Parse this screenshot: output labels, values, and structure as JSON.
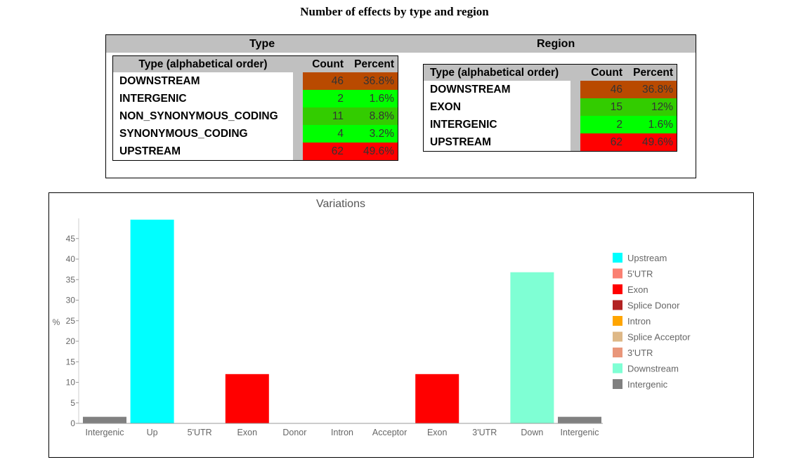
{
  "page": {
    "title": "Number of effects by type and region"
  },
  "type_panel": {
    "heading": "Type",
    "columns": [
      "Type (alphabetical order)",
      "Count",
      "Percent"
    ],
    "rows": [
      {
        "name": "DOWNSTREAM",
        "count": "46",
        "percent": "36.8%",
        "color": "#b94a00"
      },
      {
        "name": "INTERGENIC",
        "count": "2",
        "percent": "1.6%",
        "color": "#00ff00"
      },
      {
        "name": "NON_SYNONYMOUS_CODING",
        "count": "11",
        "percent": "8.8%",
        "color": "#33cc00"
      },
      {
        "name": "SYNONYMOUS_CODING",
        "count": "4",
        "percent": "3.2%",
        "color": "#00ff00"
      },
      {
        "name": "UPSTREAM",
        "count": "62",
        "percent": "49.6%",
        "color": "#ff0000"
      }
    ]
  },
  "region_panel": {
    "heading": "Region",
    "columns": [
      "Type (alphabetical order)",
      "Count",
      "Percent"
    ],
    "rows": [
      {
        "name": "DOWNSTREAM",
        "count": "46",
        "percent": "36.8%",
        "color": "#b94a00"
      },
      {
        "name": "EXON",
        "count": "15",
        "percent": "12%",
        "color": "#33cc00"
      },
      {
        "name": "INTERGENIC",
        "count": "2",
        "percent": "1.6%",
        "color": "#00ff00"
      },
      {
        "name": "UPSTREAM",
        "count": "62",
        "percent": "49.6%",
        "color": "#ff0000"
      }
    ]
  },
  "chart_data": {
    "type": "bar",
    "title": "Variations",
    "xlabel": "",
    "ylabel": "%",
    "ylim": [
      0,
      50
    ],
    "yticks": [
      0,
      5,
      10,
      15,
      20,
      25,
      30,
      35,
      40,
      45
    ],
    "grid": false,
    "legend_position": "right",
    "categories": [
      "Intergenic",
      "Up",
      "5'UTR",
      "Exon",
      "Donor",
      "Intron",
      "Acceptor",
      "Exon",
      "3'UTR",
      "Down",
      "Intergenic"
    ],
    "values": [
      1.6,
      49.6,
      0,
      12,
      0,
      0,
      0,
      12,
      0,
      36.8,
      1.6
    ],
    "bar_colors": [
      "#808080",
      "#00ffff",
      "#fa8072",
      "#ff0000",
      "#b22222",
      "#ffa500",
      "#deb887",
      "#ff0000",
      "#e9967a",
      "#7fffd4",
      "#808080"
    ],
    "legend": [
      {
        "label": "Upstream",
        "color": "#00ffff"
      },
      {
        "label": "5'UTR",
        "color": "#fa8072"
      },
      {
        "label": "Exon",
        "color": "#ff0000"
      },
      {
        "label": "Splice Donor",
        "color": "#b22222"
      },
      {
        "label": "Intron",
        "color": "#ffa500"
      },
      {
        "label": "Splice Acceptor",
        "color": "#deb887"
      },
      {
        "label": "3'UTR",
        "color": "#e9967a"
      },
      {
        "label": "Downstream",
        "color": "#7fffd4"
      },
      {
        "label": "Intergenic",
        "color": "#808080"
      }
    ]
  }
}
